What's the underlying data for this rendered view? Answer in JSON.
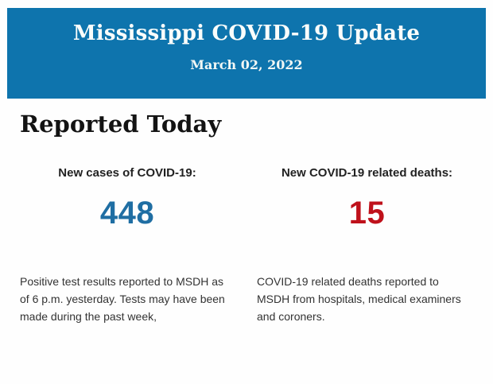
{
  "header": {
    "title": "Mississippi COVID-19 Update",
    "date": "March 02, 2022"
  },
  "main": {
    "section_title": "Reported Today",
    "stats": [
      {
        "label": "New cases of COVID-19:",
        "value": "448",
        "value_color": "#1f6ea3",
        "description": "Positive test results reported to MSDH as of 6 p.m. yesterday. Tests may have been made during the past week,"
      },
      {
        "label": "New COVID-19 related deaths:",
        "value": "15",
        "value_color": "#bf111b",
        "description": "COVID-19 related deaths reported to MSDH from hospitals, medical examiners and coroners."
      }
    ]
  },
  "colors": {
    "banner_background": "#0e74ad",
    "banner_text": "#fafdfb",
    "cases_value": "#1f6ea3",
    "deaths_value": "#bf111b",
    "page_background": "#fefefe"
  }
}
